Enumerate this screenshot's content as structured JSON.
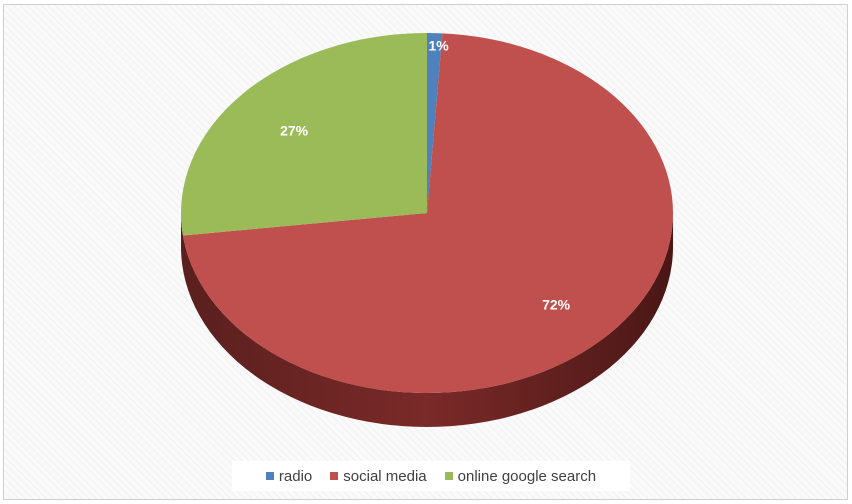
{
  "chart_data": {
    "type": "pie",
    "title": "",
    "style": "3d",
    "slices": [
      {
        "label": "radio",
        "value": 1,
        "data_label": "1%",
        "color": "#4f81bd"
      },
      {
        "label": "social media",
        "value": 72,
        "data_label": "72%",
        "color": "#c0504d"
      },
      {
        "label": "online google search",
        "value": 27,
        "data_label": "27%",
        "color": "#9bbb59"
      }
    ],
    "legend_position": "bottom"
  },
  "colors": {
    "frame_border": "#cfcfcf",
    "label_text": "#ffffff",
    "legend_text": "#404040"
  }
}
